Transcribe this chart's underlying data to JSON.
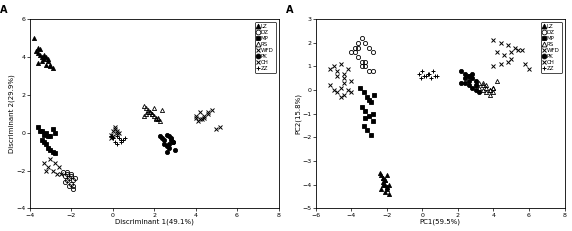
{
  "plot1": {
    "title": "A",
    "xlabel": "Discriminant 1(49.1%)",
    "ylabel": "Discriminant 2(29.9%)",
    "xlim": [
      -4,
      8
    ],
    "ylim": [
      -4,
      6
    ],
    "xticks": [
      -4,
      -2,
      0,
      2,
      4,
      6,
      8
    ],
    "yticks": [
      -4,
      -2,
      0,
      2,
      4,
      6
    ],
    "groups": {
      "LZ": {
        "x": [
          -3.8,
          -3.7,
          -3.6,
          -3.6,
          -3.5,
          -3.5,
          -3.4,
          -3.3,
          -3.3,
          -3.2,
          -3.1,
          -3.1,
          -3.0,
          -3.6,
          -3.4,
          -3.2,
          -3.0,
          -2.9
        ],
        "y": [
          5.0,
          4.3,
          4.5,
          4.2,
          4.4,
          4.1,
          4.0,
          3.9,
          4.1,
          4.0,
          3.9,
          3.8,
          3.6,
          3.7,
          3.8,
          3.6,
          3.5,
          3.4
        ]
      },
      "DZ": {
        "x": [
          -2.4,
          -2.3,
          -2.2,
          -2.2,
          -2.1,
          -2.0,
          -2.0,
          -1.9,
          -1.9,
          -1.8,
          -2.3,
          -2.1,
          -1.9,
          -2.2,
          -2.0
        ],
        "y": [
          -2.1,
          -2.3,
          -2.2,
          -2.5,
          -2.4,
          -2.3,
          -2.7,
          -2.5,
          -2.8,
          -2.4,
          -2.6,
          -2.8,
          -3.0,
          -2.1,
          -2.2
        ]
      },
      "MP": {
        "x": [
          -3.6,
          -3.5,
          -3.4,
          -3.3,
          -3.2,
          -3.1,
          -3.0,
          -2.9,
          -3.4,
          -3.3,
          -3.2,
          -3.1,
          -3.0,
          -2.9,
          -2.8,
          -2.8
        ],
        "y": [
          0.3,
          0.1,
          0.1,
          -0.1,
          0.0,
          -0.2,
          -0.2,
          0.2,
          -0.4,
          -0.5,
          -0.6,
          -0.8,
          -0.9,
          -1.0,
          -1.1,
          0.0
        ]
      },
      "RS": {
        "x": [
          1.5,
          1.6,
          1.7,
          1.8,
          1.9,
          2.0,
          2.1,
          2.2,
          2.3,
          2.4,
          1.6,
          1.8,
          2.0,
          2.2,
          1.5,
          1.7,
          1.9,
          2.1
        ],
        "y": [
          1.4,
          1.3,
          1.2,
          1.1,
          1.0,
          0.9,
          0.8,
          0.7,
          0.6,
          1.2,
          1.0,
          1.1,
          1.3,
          0.8,
          0.9,
          1.1,
          1.0,
          0.7
        ]
      },
      "WFD": {
        "x": [
          -3.3,
          -3.1,
          -2.9,
          -2.7,
          -3.0,
          -2.8,
          -2.6,
          -2.5,
          -3.2,
          4.0,
          4.2,
          4.4,
          4.6,
          4.8,
          4.2,
          4.4,
          4.6,
          4.0,
          4.1,
          4.3,
          5.0,
          5.2
        ],
        "y": [
          -1.6,
          -1.8,
          -2.0,
          -2.2,
          -1.4,
          -1.6,
          -1.8,
          -2.2,
          -2.0,
          0.9,
          1.1,
          0.8,
          1.0,
          1.2,
          0.7,
          0.9,
          1.1,
          0.8,
          0.6,
          0.7,
          0.2,
          0.3
        ]
      },
      "PK": {
        "x": [
          2.3,
          2.4,
          2.5,
          2.6,
          2.7,
          2.8,
          2.9,
          2.5,
          2.6,
          2.7,
          2.8,
          2.9,
          3.0,
          2.6,
          2.7
        ],
        "y": [
          -0.2,
          -0.3,
          -0.4,
          -0.1,
          -0.2,
          -0.3,
          -0.5,
          -0.6,
          -0.7,
          -0.8,
          -0.4,
          -0.5,
          -0.9,
          -1.0,
          -0.6
        ]
      },
      "CH": {
        "x": [
          0.0,
          0.1,
          0.2,
          -0.1,
          0.1,
          0.0,
          -0.1,
          0.2,
          0.3
        ],
        "y": [
          0.1,
          0.2,
          0.0,
          -0.1,
          0.3,
          -0.2,
          -0.3,
          0.1,
          0.0
        ]
      },
      "ZZ": {
        "x": [
          0.0,
          0.2,
          0.4,
          0.6,
          0.1,
          0.3,
          0.5,
          -0.1,
          0.2,
          0.4
        ],
        "y": [
          -0.3,
          -0.2,
          -0.4,
          -0.3,
          -0.5,
          -0.3,
          -0.4,
          -0.2,
          -0.6,
          -0.5
        ]
      }
    }
  },
  "plot2": {
    "title": "A",
    "xlabel": "PC1(59.5%)",
    "ylabel": "PC2(15.8%)",
    "xlim": [
      -6,
      8
    ],
    "ylim": [
      -5,
      3
    ],
    "xticks": [
      -6,
      -4,
      -2,
      0,
      2,
      4,
      6,
      8
    ],
    "yticks": [
      -5,
      -4,
      -3,
      -2,
      -1,
      0,
      1,
      2,
      3
    ],
    "groups": {
      "LZ": {
        "x": [
          -2.4,
          -2.3,
          -2.2,
          -2.1,
          -2.0,
          -2.2,
          -2.1,
          -2.0,
          -1.9,
          -2.3,
          -2.1,
          -2.0,
          -2.2,
          -2.1,
          -2.0,
          -1.9,
          -2.2
        ],
        "y": [
          -3.5,
          -3.6,
          -3.7,
          -3.8,
          -3.6,
          -3.9,
          -4.0,
          -4.1,
          -4.0,
          -4.2,
          -4.3,
          -4.1,
          -4.0,
          -3.8,
          -4.2,
          -4.4,
          -3.7
        ]
      },
      "DZ": {
        "x": [
          -4.0,
          -3.8,
          -3.6,
          -3.4,
          -3.2,
          -3.0,
          -3.8,
          -3.6,
          -3.4,
          -3.2,
          -3.0,
          -2.8,
          -3.6,
          -3.4,
          -3.2,
          -2.8
        ],
        "y": [
          1.6,
          1.8,
          2.0,
          2.2,
          2.0,
          1.8,
          1.6,
          1.4,
          1.2,
          1.0,
          0.8,
          1.6,
          1.8,
          1.0,
          1.2,
          0.8
        ]
      },
      "MP": {
        "x": [
          -3.5,
          -3.3,
          -3.1,
          -2.9,
          -3.4,
          -3.2,
          -3.0,
          -2.8,
          -3.3,
          -3.1,
          -2.9,
          -2.7,
          -3.0,
          -2.8,
          -3.2
        ],
        "y": [
          0.1,
          -0.1,
          -0.3,
          -0.5,
          -0.7,
          -0.9,
          -1.1,
          -1.3,
          -1.5,
          -1.7,
          -1.9,
          -0.2,
          -0.4,
          -1.0,
          -1.2
        ]
      },
      "RS": {
        "x": [
          3.0,
          3.2,
          3.4,
          3.6,
          3.8,
          4.0,
          3.2,
          3.4,
          3.6,
          3.8,
          4.0,
          4.2,
          3.4,
          3.6,
          3.8,
          4.0
        ],
        "y": [
          0.2,
          0.1,
          0.0,
          -0.1,
          -0.2,
          0.1,
          0.3,
          0.2,
          0.1,
          0.0,
          -0.1,
          0.4,
          0.3,
          0.2,
          0.0,
          0.1
        ]
      },
      "WFD": {
        "x": [
          -5.2,
          -4.8,
          -4.4,
          -5.0,
          -4.6,
          -4.2,
          -4.8,
          -4.4,
          -4.0,
          4.0,
          4.4,
          4.8,
          5.2,
          5.6,
          4.2,
          4.6,
          5.0,
          5.4,
          4.0,
          4.4,
          4.8,
          5.0,
          5.8,
          6.0
        ],
        "y": [
          0.9,
          0.8,
          0.7,
          1.0,
          1.1,
          0.9,
          0.6,
          0.5,
          0.4,
          2.1,
          2.0,
          1.9,
          1.8,
          1.7,
          1.6,
          1.5,
          1.6,
          1.7,
          1.0,
          1.1,
          1.2,
          1.3,
          1.1,
          0.9
        ]
      },
      "PK": {
        "x": [
          2.2,
          2.4,
          2.6,
          2.8,
          3.0,
          2.4,
          2.6,
          2.8,
          3.0,
          3.2,
          2.4,
          2.6,
          2.8,
          3.0,
          2.2,
          2.6
        ],
        "y": [
          0.8,
          0.7,
          0.6,
          0.5,
          0.4,
          0.3,
          0.2,
          0.1,
          0.0,
          -0.1,
          0.5,
          0.6,
          0.7,
          0.2,
          0.3,
          0.4
        ]
      },
      "CH": {
        "x": [
          -5.0,
          -4.8,
          -4.6,
          -4.4,
          -5.2,
          -4.2,
          -4.0,
          -4.6,
          -4.4
        ],
        "y": [
          0.0,
          -0.1,
          0.1,
          -0.2,
          0.2,
          0.0,
          -0.1,
          -0.3,
          0.3
        ]
      },
      "ZZ": {
        "x": [
          -0.2,
          0.0,
          0.2,
          0.4,
          0.6,
          0.8,
          -0.1,
          0.1,
          0.3,
          0.5,
          0.7
        ],
        "y": [
          0.7,
          0.8,
          0.6,
          0.7,
          0.8,
          0.6,
          0.5,
          0.6,
          0.7,
          0.5,
          0.6
        ]
      }
    }
  },
  "legend_order": [
    "LZ",
    "DZ",
    "MP",
    "RS",
    "WFD",
    "PK",
    "CH",
    "ZZ"
  ]
}
